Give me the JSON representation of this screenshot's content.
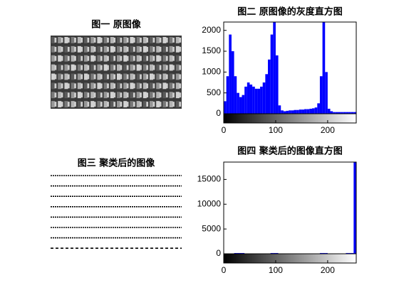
{
  "chart_data": [
    {
      "type": "image",
      "title": "图一 原图像",
      "style": "original"
    },
    {
      "type": "histogram",
      "title": "图二 原图像的灰度直方图",
      "color": "#0000ff",
      "bins": [
        0,
        5,
        10,
        15,
        20,
        25,
        30,
        35,
        40,
        45,
        50,
        55,
        60,
        65,
        70,
        75,
        80,
        85,
        90,
        95,
        100,
        105,
        110,
        115,
        120,
        125,
        130,
        135,
        140,
        145,
        150,
        155,
        160,
        165,
        170,
        175,
        180,
        185,
        190,
        195,
        200,
        205,
        210,
        215,
        220,
        225,
        230,
        235,
        240,
        245,
        250,
        255
      ],
      "values": [
        300,
        900,
        1900,
        1500,
        900,
        500,
        400,
        450,
        650,
        750,
        700,
        650,
        600,
        600,
        650,
        750,
        950,
        1300,
        1900,
        2200,
        1400,
        200,
        80,
        60,
        70,
        80,
        80,
        90,
        90,
        100,
        100,
        110,
        110,
        120,
        130,
        150,
        250,
        900,
        2200,
        1000,
        120,
        60,
        40,
        40,
        40,
        40,
        40,
        40,
        40,
        40,
        40
      ],
      "xlim": [
        0,
        255
      ],
      "xticks": [
        0,
        100,
        200
      ],
      "ylim": [
        0,
        2200
      ],
      "yticks": [
        0,
        500,
        1000,
        1500,
        2000
      ]
    },
    {
      "type": "image",
      "title": "图三 聚类后的图像",
      "style": "clustered"
    },
    {
      "type": "histogram",
      "title": "图四 聚类后的图像直方图",
      "color": "#0000ff",
      "bins": [
        0,
        5,
        10,
        15,
        20,
        25,
        30,
        35,
        40,
        45,
        50,
        55,
        60,
        65,
        70,
        75,
        80,
        85,
        90,
        95,
        100,
        105,
        110,
        115,
        120,
        125,
        130,
        135,
        140,
        145,
        150,
        155,
        160,
        165,
        170,
        175,
        180,
        185,
        190,
        195,
        200,
        205,
        210,
        215,
        220,
        225,
        230,
        235,
        240,
        245,
        250,
        255
      ],
      "values": [
        0,
        0,
        0,
        0,
        150,
        150,
        150,
        150,
        0,
        0,
        0,
        0,
        0,
        0,
        0,
        0,
        0,
        0,
        150,
        150,
        150,
        0,
        0,
        0,
        0,
        0,
        0,
        0,
        0,
        0,
        0,
        0,
        0,
        0,
        0,
        0,
        0,
        150,
        150,
        150,
        0,
        0,
        0,
        0,
        0,
        0,
        0,
        150,
        150,
        150,
        18500
      ],
      "xlim": [
        0,
        255
      ],
      "xticks": [
        0,
        100,
        200
      ],
      "ylim": [
        0,
        18500
      ],
      "yticks": [
        0,
        5000,
        10000,
        15000
      ]
    }
  ]
}
